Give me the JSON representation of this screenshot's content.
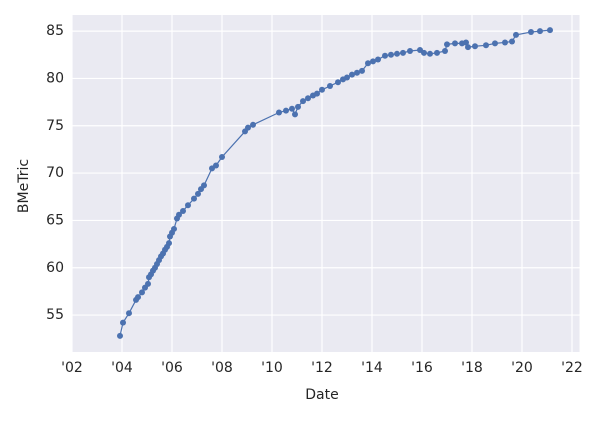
{
  "chart_data": {
    "type": "line",
    "x_label": "Date",
    "y_label": "BMeTric",
    "x": [
      2003.92,
      2004.04,
      2004.28,
      2004.56,
      2004.64,
      2004.8,
      2004.92,
      2005.04,
      2005.08,
      2005.16,
      2005.24,
      2005.32,
      2005.4,
      2005.48,
      2005.56,
      2005.64,
      2005.72,
      2005.8,
      2005.88,
      2005.92,
      2006.0,
      2006.08,
      2006.2,
      2006.28,
      2006.44,
      2006.64,
      2006.88,
      2007.04,
      2007.16,
      2007.28,
      2007.6,
      2007.76,
      2008.0,
      2008.92,
      2009.04,
      2009.24,
      2010.28,
      2010.56,
      2010.8,
      2010.92,
      2011.04,
      2011.24,
      2011.44,
      2011.64,
      2011.8,
      2012.0,
      2012.32,
      2012.64,
      2012.84,
      2013.0,
      2013.2,
      2013.4,
      2013.6,
      2013.84,
      2014.04,
      2014.24,
      2014.52,
      2014.76,
      2015.0,
      2015.24,
      2015.52,
      2015.92,
      2016.08,
      2016.32,
      2016.6,
      2016.92,
      2017.0,
      2017.32,
      2017.6,
      2017.76,
      2017.84,
      2018.12,
      2018.56,
      2018.92,
      2019.32,
      2019.6,
      2019.76,
      2020.36,
      2020.72,
      2021.12
    ],
    "series": [
      {
        "name": "BMeTric",
        "color": "#4c72b0",
        "values": [
          52.8,
          54.2,
          55.2,
          56.6,
          56.9,
          57.4,
          57.9,
          58.3,
          59.0,
          59.3,
          59.7,
          60.0,
          60.4,
          60.8,
          61.2,
          61.5,
          61.9,
          62.2,
          62.6,
          63.3,
          63.7,
          64.1,
          65.2,
          65.6,
          66.0,
          66.6,
          67.3,
          67.8,
          68.3,
          68.7,
          70.5,
          70.8,
          71.7,
          74.4,
          74.8,
          75.1,
          76.4,
          76.6,
          76.8,
          76.2,
          77.0,
          77.6,
          77.9,
          78.2,
          78.4,
          78.8,
          79.2,
          79.6,
          79.9,
          80.1,
          80.4,
          80.6,
          80.8,
          81.6,
          81.8,
          82.0,
          82.4,
          82.5,
          82.6,
          82.7,
          82.9,
          83.0,
          82.7,
          82.6,
          82.7,
          82.9,
          83.6,
          83.7,
          83.7,
          83.8,
          83.3,
          83.4,
          83.5,
          83.7,
          83.8,
          83.9,
          84.6,
          84.9,
          85.0,
          85.1
        ]
      }
    ],
    "xlim": [
      2002,
      2022.3
    ],
    "ylim": [
      51.1,
      86.7
    ],
    "xticks": [
      {
        "value": 2002,
        "label": "'02"
      },
      {
        "value": 2004,
        "label": "'04"
      },
      {
        "value": 2006,
        "label": "'06"
      },
      {
        "value": 2008,
        "label": "'08"
      },
      {
        "value": 2010,
        "label": "'10"
      },
      {
        "value": 2012,
        "label": "'12"
      },
      {
        "value": 2014,
        "label": "'14"
      },
      {
        "value": 2016,
        "label": "'16"
      },
      {
        "value": 2018,
        "label": "'18"
      },
      {
        "value": 2020,
        "label": "'20"
      },
      {
        "value": 2022,
        "label": "'22"
      }
    ],
    "yticks": [
      55,
      60,
      65,
      70,
      75,
      80,
      85
    ],
    "grid": true
  }
}
